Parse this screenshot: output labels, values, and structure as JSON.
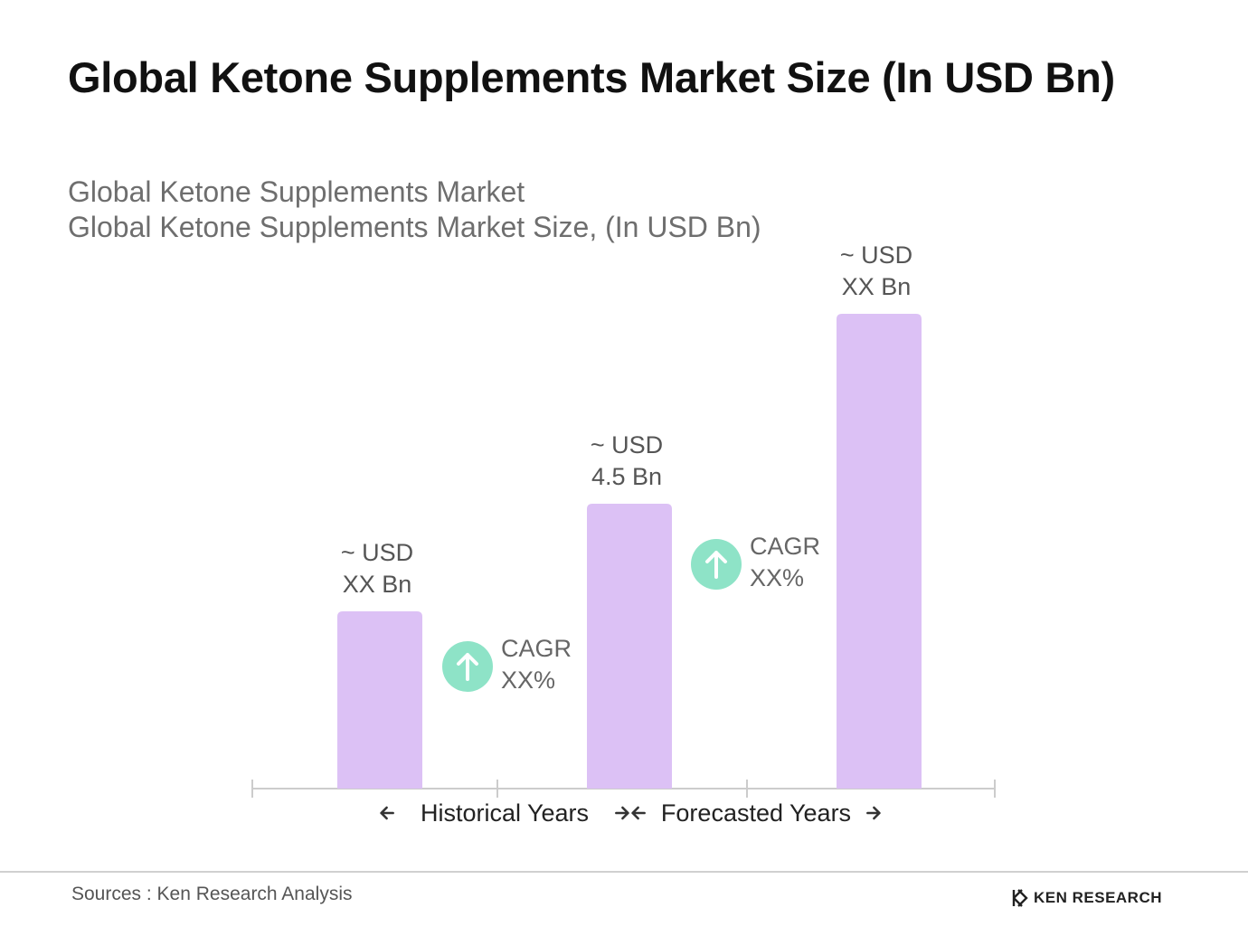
{
  "title": "Global Ketone Supplements Market Size (In USD Bn)",
  "subtitle_lines": [
    "Global Ketone Supplements Market",
    "Global Ketone Supplements Market Size, (In USD Bn)"
  ],
  "chart_data": {
    "type": "bar",
    "categories": [
      "",
      "",
      ""
    ],
    "values": [
      2.8,
      4.5,
      7.5
    ],
    "data_labels": [
      [
        "~  USD",
        "XX Bn"
      ],
      [
        "~  USD",
        "4.5 Bn"
      ],
      [
        "~ USD",
        "XX Bn"
      ]
    ],
    "bar_color": "#dcc1f5",
    "cagr_badges": [
      {
        "lines": [
          "CAGR",
          "XX%"
        ],
        "icon": "arrow-up-icon",
        "color": "#8ee3c7"
      },
      {
        "lines": [
          "CAGR",
          "XX%"
        ],
        "icon": "arrow-up-icon",
        "color": "#8ee3c7"
      }
    ],
    "period_labels": [
      "Historical Years",
      "Forecasted Years"
    ],
    "axis_color": "#cccccc",
    "grid": false,
    "legend": "none",
    "ylim": [
      0,
      8.2
    ]
  },
  "footer": {
    "source": "Sources : Ken Research Analysis",
    "logo_text": "KEN RESEARCH"
  }
}
